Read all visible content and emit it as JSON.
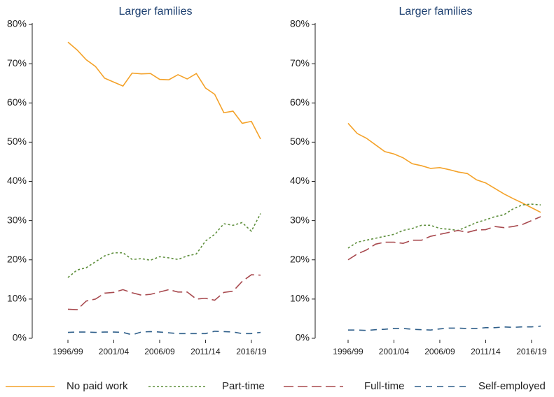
{
  "chart_data": [
    {
      "type": "line",
      "title": "Larger families",
      "categories": [
        "1996/99",
        null,
        null,
        null,
        null,
        "2001/04",
        null,
        null,
        null,
        null,
        "2006/09",
        null,
        null,
        null,
        null,
        "2011/14",
        null,
        null,
        null,
        null,
        "2016/19",
        null
      ],
      "ylim": [
        0,
        80
      ],
      "yticks": [
        {
          "value": 0,
          "label": "0%"
        },
        {
          "value": 10,
          "label": "10%"
        },
        {
          "value": 20,
          "label": "20%"
        },
        {
          "value": 30,
          "label": "30%"
        },
        {
          "value": 40,
          "label": "40%"
        },
        {
          "value": 50,
          "label": "50%"
        },
        {
          "value": 60,
          "label": "60%"
        },
        {
          "value": 70,
          "label": "70%"
        },
        {
          "value": 80,
          "label": "80%"
        }
      ],
      "series": [
        {
          "name": "No paid work",
          "color": "#f4a229",
          "style": "solid",
          "values": [
            75.5,
            73.5,
            71,
            69.3,
            66.3,
            65.3,
            64.3,
            67.6,
            67.4,
            67.5,
            66,
            65.9,
            67.2,
            66.1,
            67.5,
            63.8,
            62.2,
            57.5,
            57.9,
            54.8,
            55.3,
            50.8
          ]
        },
        {
          "name": "Part-time",
          "color": "#5e8f3c",
          "style": "dotted",
          "values": [
            15.5,
            17.4,
            18,
            19.5,
            21,
            21.8,
            21.8,
            20.1,
            20.3,
            19.9,
            20.8,
            20.5,
            20.1,
            21,
            21.5,
            24.8,
            26.5,
            29.2,
            28.8,
            29.5,
            27.3,
            31.8
          ]
        },
        {
          "name": "Full-time",
          "color": "#a84a4f",
          "style": "dashed",
          "values": [
            7.4,
            7.3,
            9.5,
            10,
            11.5,
            11.7,
            12.4,
            11.6,
            11,
            11.2,
            11.8,
            12.4,
            11.8,
            11.8,
            10,
            10.2,
            9.7,
            11.7,
            12,
            14.5,
            16.2,
            16.1
          ]
        },
        {
          "name": "Self-employed",
          "color": "#2f5f8a",
          "style": "dashdot",
          "values": [
            1.5,
            1.6,
            1.6,
            1.5,
            1.6,
            1.6,
            1.5,
            0.9,
            1.6,
            1.7,
            1.6,
            1.4,
            1.2,
            1.2,
            1.2,
            1.2,
            1.8,
            1.7,
            1.6,
            1.2,
            1.2,
            1.5
          ]
        }
      ]
    },
    {
      "type": "line",
      "title": "Larger families",
      "categories": [
        "1996/99",
        null,
        null,
        null,
        null,
        "2001/04",
        null,
        null,
        null,
        null,
        "2006/09",
        null,
        null,
        null,
        null,
        "2011/14",
        null,
        null,
        null,
        null,
        "2016/19",
        null
      ],
      "ylim": [
        0,
        80
      ],
      "yticks": [
        {
          "value": 0,
          "label": "0%"
        },
        {
          "value": 10,
          "label": "10%"
        },
        {
          "value": 20,
          "label": "20%"
        },
        {
          "value": 30,
          "label": "30%"
        },
        {
          "value": 40,
          "label": "40%"
        },
        {
          "value": 50,
          "label": "50%"
        },
        {
          "value": 60,
          "label": "60%"
        },
        {
          "value": 70,
          "label": "70%"
        },
        {
          "value": 80,
          "label": "80%"
        }
      ],
      "series": [
        {
          "color": "#f4a229",
          "style": "solid",
          "values": [
            54.8,
            52.2,
            51,
            49.3,
            47.6,
            47,
            46,
            44.5,
            44,
            43.3,
            43.5,
            43,
            42.4,
            42,
            40.4,
            39.6,
            38.2,
            36.8,
            35.6,
            34.5,
            33.3,
            32.1
          ]
        },
        {
          "color": "#5e8f3c",
          "style": "dotted",
          "values": [
            23,
            24.5,
            25,
            25.5,
            26,
            26.5,
            27.5,
            28,
            28.8,
            28.8,
            28,
            27.8,
            27.5,
            28.5,
            29.5,
            30.2,
            31,
            31.5,
            33,
            34,
            34.2,
            34
          ]
        },
        {
          "color": "#a84a4f",
          "style": "dashed",
          "values": [
            20,
            21.5,
            22.5,
            24,
            24.5,
            24.5,
            24.2,
            25,
            25,
            26,
            26.5,
            27,
            27.5,
            27,
            27.6,
            27.7,
            28.5,
            28.2,
            28.5,
            29,
            30,
            31
          ]
        },
        {
          "color": "#2f5f8a",
          "style": "dashdot",
          "values": [
            2.1,
            2.1,
            2,
            2.2,
            2.3,
            2.5,
            2.5,
            2.3,
            2.2,
            2.1,
            2.4,
            2.6,
            2.6,
            2.5,
            2.5,
            2.7,
            2.7,
            2.9,
            2.8,
            2.9,
            2.9,
            3.1
          ]
        }
      ]
    }
  ]
}
